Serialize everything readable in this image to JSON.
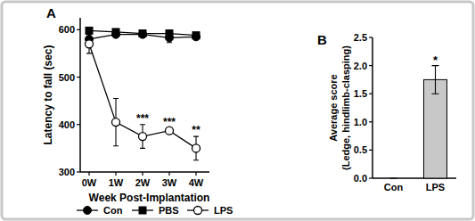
{
  "chart_data": [
    {
      "type": "line",
      "title": "A",
      "categories": [
        "0W",
        "1W",
        "2W",
        "3W",
        "4W"
      ],
      "xlabel": "Week Post-Implantation",
      "ylabel": "Latency to fall (sec)",
      "ylim": [
        300,
        625
      ],
      "yticks": [
        300,
        400,
        500,
        600
      ],
      "legend": "bottom",
      "series": [
        {
          "name": "Con",
          "color": "#000000",
          "marker": "circle",
          "values": [
            580,
            590,
            590,
            583,
            585
          ],
          "errors": [
            6,
            4,
            5,
            10,
            6
          ]
        },
        {
          "name": "PBS",
          "color": "#000000",
          "marker": "square",
          "values": [
            598,
            595,
            592,
            592,
            588
          ],
          "errors": [
            4,
            4,
            5,
            5,
            6
          ]
        },
        {
          "name": "LPS",
          "color": "#000000",
          "marker": "open-circle",
          "values": [
            570,
            405,
            375,
            387,
            350
          ],
          "errors": [
            20,
            50,
            25,
            5,
            25
          ]
        }
      ],
      "annotations": [
        {
          "series": "LPS",
          "category": "2W",
          "text": "***"
        },
        {
          "series": "LPS",
          "category": "3W",
          "text": "***"
        },
        {
          "series": "LPS",
          "category": "4W",
          "text": "**"
        }
      ]
    },
    {
      "type": "bar",
      "title": "B",
      "categories": [
        "Con",
        "LPS"
      ],
      "values": [
        0,
        1.75
      ],
      "errors": [
        0,
        0.25
      ],
      "color": "#c8c8c8",
      "ylabel": [
        "Average score",
        "(Ledge, hindlimb-clasping)"
      ],
      "ylim": [
        0,
        2.5
      ],
      "yticks": [
        {
          "value": 0,
          "label": "0.0"
        },
        {
          "value": 0.5,
          "label": "0.5"
        },
        {
          "value": 1,
          "label": "1.0"
        },
        {
          "value": 1.5,
          "label": "1.5"
        },
        {
          "value": 2,
          "label": "2.0"
        },
        {
          "value": 2.5,
          "label": "2.5"
        }
      ],
      "annotations": [
        {
          "category": "LPS",
          "text": "*"
        }
      ]
    }
  ]
}
